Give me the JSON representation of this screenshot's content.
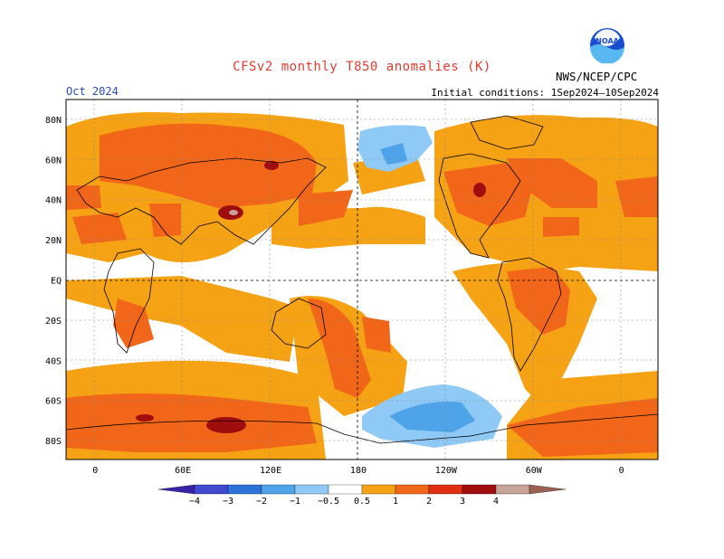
{
  "header": {
    "title": "CFSv2 monthly T850 anomalies (K)",
    "month": "Oct 2024",
    "initial_conditions": "Initial conditions: 1Sep2024–10Sep2024",
    "agency": "NWS/NCEP/CPC",
    "logo_text": "NOAA"
  },
  "map": {
    "lat_labels": [
      "80N",
      "60N",
      "40N",
      "20N",
      "EQ",
      "20S",
      "40S",
      "60S",
      "80S"
    ],
    "lon_labels": [
      "0",
      "60E",
      "120E",
      "180",
      "120W",
      "60W",
      "0"
    ],
    "lat_values": [
      80,
      60,
      40,
      20,
      0,
      -20,
      -40,
      -60,
      -80
    ],
    "lon_values": [
      0,
      60,
      120,
      180,
      240,
      300,
      360
    ]
  },
  "colorbar": {
    "labels": [
      "−4",
      "−3",
      "−2",
      "−1",
      "−0.5",
      "0.5",
      "1",
      "2",
      "3",
      "4"
    ],
    "bins": [
      {
        "color": "#3a22a8"
      },
      {
        "color": "#3f4ad1"
      },
      {
        "color": "#2c72d8"
      },
      {
        "color": "#4fa3e8"
      },
      {
        "color": "#8fc9f5"
      },
      {
        "color": "#ffffff"
      },
      {
        "color": "#f5a215"
      },
      {
        "color": "#f26619"
      },
      {
        "color": "#e02f10"
      },
      {
        "color": "#a00d0d"
      },
      {
        "color": "#c8a398"
      },
      {
        "color": "#9b6052"
      }
    ]
  }
}
